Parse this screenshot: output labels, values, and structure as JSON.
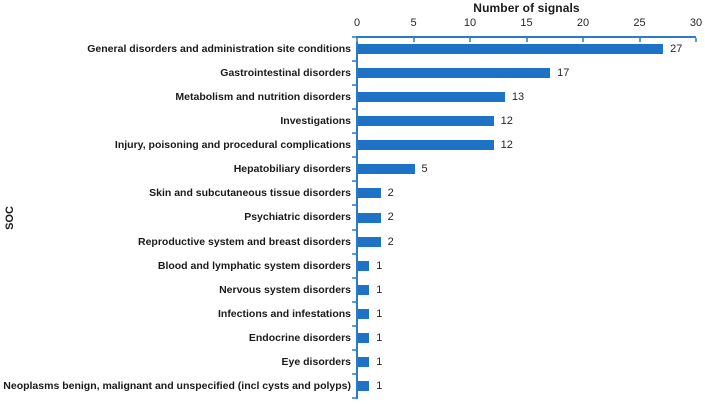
{
  "chart_data": {
    "type": "bar",
    "orientation": "horizontal",
    "title": "Number of signals",
    "ylabel": "SOC",
    "xlim": [
      0,
      30
    ],
    "xticks": [
      0,
      5,
      10,
      15,
      20,
      25,
      30
    ],
    "grid": false,
    "legend": "none",
    "value_labels": true,
    "categories": [
      "General disorders and administration site conditions",
      "Gastrointestinal disorders",
      "Metabolism and nutrition disorders",
      "Investigations",
      "Injury, poisoning and procedural complications",
      "Hepatobiliary disorders",
      "Skin and subcutaneous tissue disorders",
      "Psychiatric disorders",
      "Reproductive system and breast disorders",
      "Blood and lymphatic system disorders",
      "Nervous system disorders",
      "Infections and infestations",
      "Endocrine disorders",
      "Eye disorders",
      "Neoplasms benign, malignant and unspecified (incl cysts and polyps)"
    ],
    "values": [
      27,
      17,
      13,
      12,
      12,
      5,
      2,
      2,
      2,
      1,
      1,
      1,
      1,
      1,
      1
    ],
    "colors": {
      "bar": "#1f73c6",
      "axis": "#2e79c9",
      "tick": "#5b9bd5",
      "text": "#1a1a1a"
    }
  }
}
